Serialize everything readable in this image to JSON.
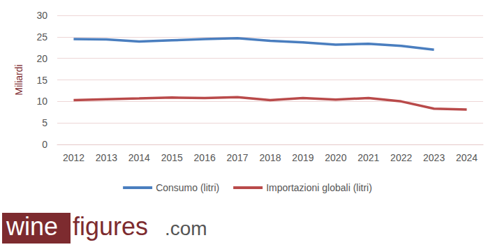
{
  "chart_data": {
    "type": "line",
    "y_label": "Miliardi",
    "categories": [
      "2012",
      "2013",
      "2014",
      "2015",
      "2016",
      "2017",
      "2018",
      "2019",
      "2020",
      "2021",
      "2022",
      "2023",
      "2024"
    ],
    "series": [
      {
        "name": "Consumo (litri)",
        "color": "#4a7ebf",
        "values": [
          24.5,
          24.4,
          23.9,
          24.2,
          24.5,
          24.7,
          24.1,
          23.7,
          23.2,
          23.4,
          22.9,
          22.0,
          null
        ]
      },
      {
        "name": "Importazioni globali (litri)",
        "color": "#b94a4a",
        "values": [
          10.3,
          10.5,
          10.7,
          10.9,
          10.8,
          11.0,
          10.3,
          10.8,
          10.4,
          10.8,
          10.0,
          8.3,
          8.1
        ]
      }
    ],
    "ylim": [
      0,
      30
    ],
    "yticks": [
      0,
      5,
      10,
      15,
      20,
      25,
      30
    ],
    "grid": true,
    "legend": "bottom",
    "annotations": [
      "wine",
      "figures",
      ".com"
    ]
  }
}
